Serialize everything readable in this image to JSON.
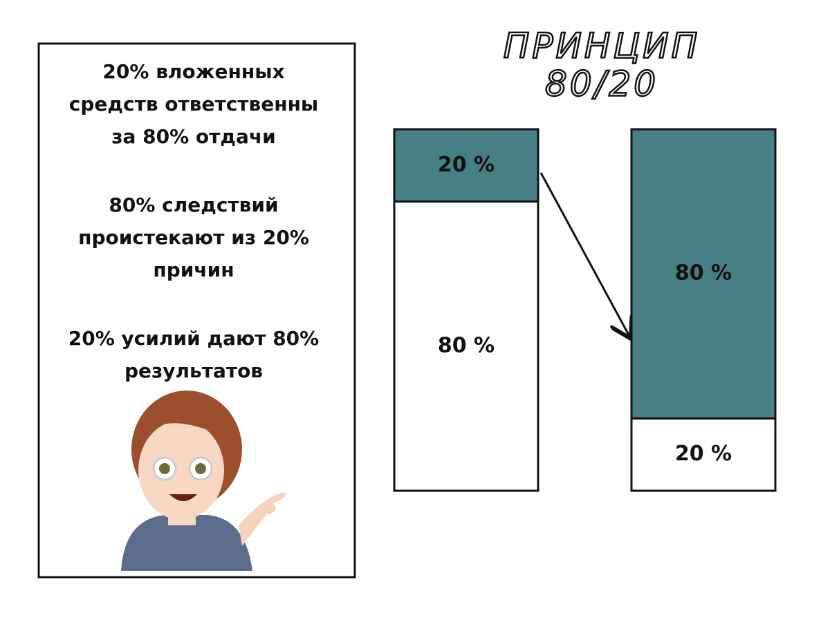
{
  "title": {
    "lines": [
      "ПРИНЦИП",
      "80/20"
    ]
  },
  "text_box": {
    "paragraphs": [
      [
        "20% вложенных",
        "средств ответственны",
        "за 80% отдачи"
      ],
      [
        "80% следствий",
        "проистекают из 20%",
        "причин"
      ],
      [
        "20% усилий дают 80%",
        "результатов"
      ]
    ]
  },
  "bars": [
    {
      "segments": [
        {
          "value": 20,
          "label": "20 %",
          "color": "#467f84"
        },
        {
          "value": 80,
          "label": "80 %",
          "color": "#ffffff"
        }
      ]
    },
    {
      "segments": [
        {
          "value": 80,
          "label": "80 %",
          "color": "#467f84"
        },
        {
          "value": 20,
          "label": "20 %",
          "color": "#ffffff"
        }
      ]
    }
  ]
}
